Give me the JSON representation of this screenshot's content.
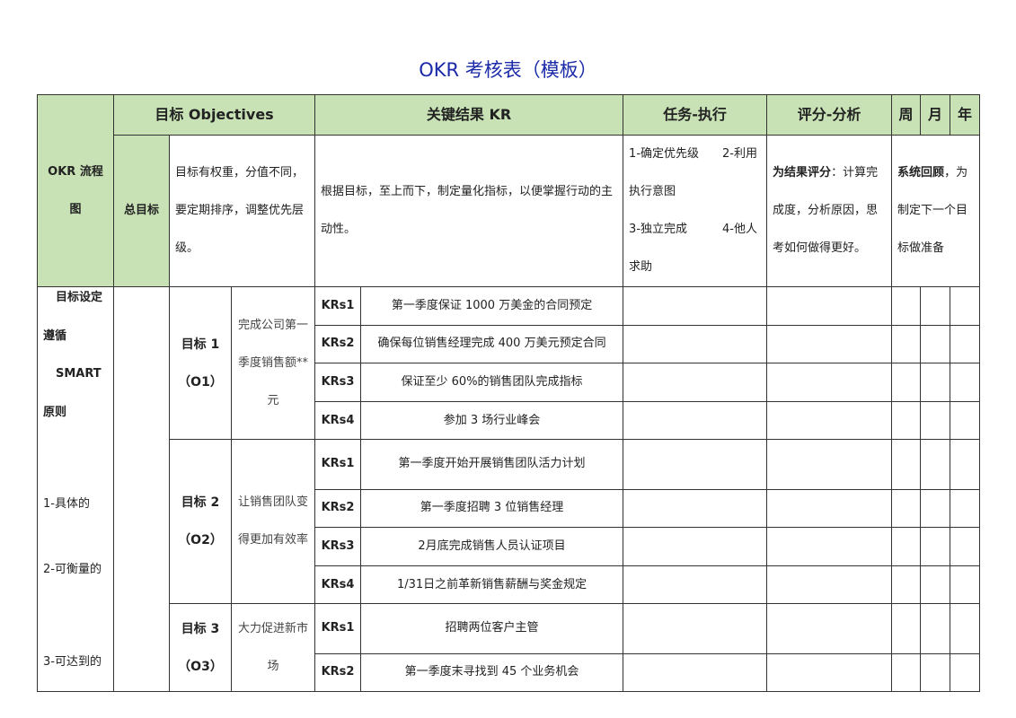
{
  "title": "OKR 考核表（模板）",
  "colors": {
    "header_green": "#c8e2b6",
    "title_blue": "#1a2aa8"
  },
  "header": {
    "flow": "OKR 流程图",
    "objectives": "目标 Objectives",
    "kr": "关键结果 KR",
    "tasks": "任务-执行",
    "score": "评分-分析",
    "week": "周",
    "month": "月",
    "year": "年"
  },
  "overview": {
    "total_goal_label": "总目标",
    "objective_desc": "目标有权重，分值不同，要定期排序，调整优先层级。",
    "kr_desc": "根据目标，至上而下，制定量化指标，以便掌握行动的主动性。",
    "tasks_lines": [
      "1-确定优先级　　2-利用执行意图",
      "3-独立完成　　　4-他人求助"
    ],
    "score_bold": "为结果评分",
    "score_rest": "：计算完成度，分析原因，思考如何做得更好。",
    "review_bold": "系统回顾",
    "review_rest": "，为制定下一个目标做准备"
  },
  "smart": {
    "lines": [
      "目标设定",
      "遵循",
      "SMART",
      "原则",
      "",
      "",
      "1-具体的",
      "",
      "2-可衡量的",
      "",
      "",
      "3-可达到的"
    ]
  },
  "objectives": [
    {
      "label": "目标 1",
      "code": "（O1）",
      "desc": "完成公司第一季度销售额**元",
      "krs": [
        {
          "id": "KRs1",
          "text": "第一季度保证 1000 万美金的合同预定"
        },
        {
          "id": "KRs2",
          "text": "确保每位销售经理完成 400 万美元预定合同"
        },
        {
          "id": "KRs3",
          "text": "保证至少 60%的销售团队完成指标"
        },
        {
          "id": "KRs4",
          "text": "参加 3 场行业峰会"
        }
      ]
    },
    {
      "label": "目标 2",
      "code": "（O2）",
      "desc": "让销售团队变得更加有效率",
      "krs": [
        {
          "id": "KRs1",
          "text": "第一季度开始开展销售团队活力计划"
        },
        {
          "id": "KRs2",
          "text": "第一季度招聘 3 位销售经理"
        },
        {
          "id": "KRs3",
          "text": "2月底完成销售人员认证项目"
        },
        {
          "id": "KRs4",
          "text": "1/31日之前革新销售薪酬与奖金规定"
        }
      ]
    },
    {
      "label": "目标 3",
      "code": "（O3）",
      "desc": "大力促进新市场",
      "krs": [
        {
          "id": "KRs1",
          "text": "招聘两位客户主管"
        },
        {
          "id": "KRs2",
          "text": "第一季度末寻找到 45 个业务机会"
        }
      ]
    }
  ]
}
